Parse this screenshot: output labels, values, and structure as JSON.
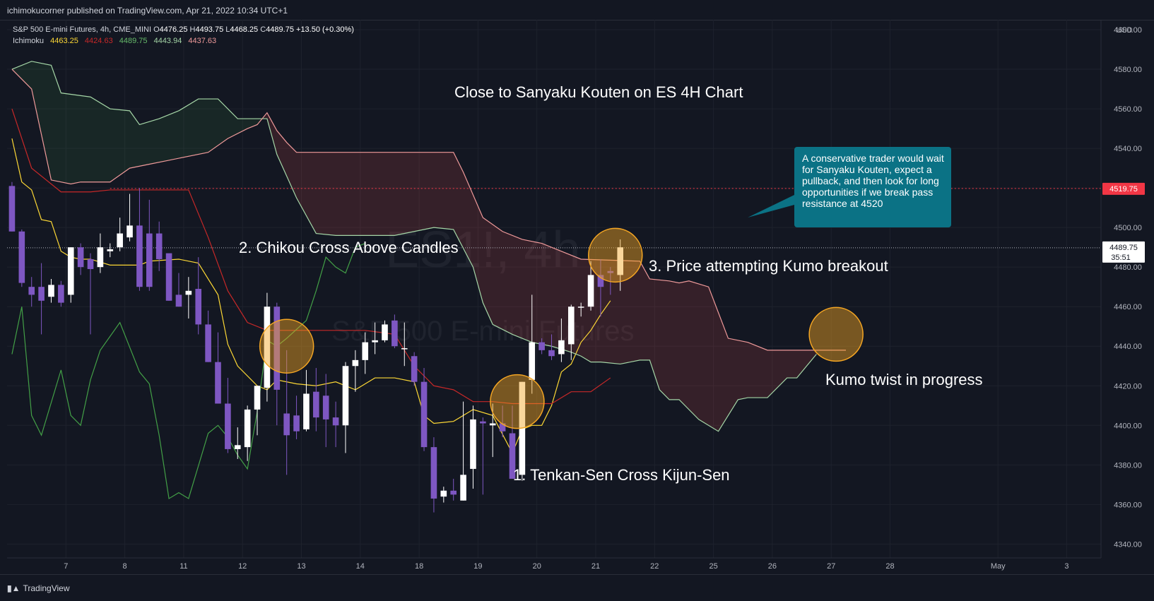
{
  "header": {
    "published": "ichimokucorner published on TradingView.com, Apr 21, 2022 10:34 UTC+1"
  },
  "legend": {
    "symbol": "S&P 500 E-mini Futures, 4h, CME_MINI",
    "o_label": "O",
    "o": "4476.25",
    "h_label": "H",
    "h": "4493.75",
    "l_label": "L",
    "l": "4468.25",
    "c_label": "C",
    "c": "4489.75",
    "change": "+13.50 (+0.30%)",
    "indicator": "Ichimoku",
    "ichimoku_values": [
      "4463.25",
      "4424.63",
      "4489.75",
      "4443.94",
      "4437.63"
    ],
    "ichimoku_colors": [
      "#fdd835",
      "#c62828",
      "#66bb6a",
      "#a5d6a7",
      "#ef9a9a"
    ]
  },
  "watermark": {
    "symbol": "ES1!, 4h",
    "name": "S&P 500 E-mini Futures"
  },
  "annotations": {
    "title": "Close to Sanyaku Kouten on ES 4H Chart",
    "chikou": "2. Chikou Cross Above Candles",
    "price": "3. Price attempting Kumo breakout",
    "tenkan": "1. Tenkan-Sen Cross Kijun-Sen",
    "kumo_twist": "Kumo twist in progress",
    "callout": "A conservative trader would wait for Sanyaku Kouten, expect a pullback, and then look for long opportunities if we break pass resistance at 4520"
  },
  "price_axis": {
    "currency": "USD",
    "resistance_label": "4519.75",
    "last_price_label": "4489.75",
    "countdown": "35:51"
  },
  "footer": {
    "brand": "TradingView"
  },
  "colors": {
    "background": "#131722",
    "up_candle": "#ffffff",
    "down_candle": "#7e57c2",
    "tenkan": "#fdd835",
    "kijun": "#c62828",
    "chikou": "#43a047",
    "span_a": "#a5d6a7",
    "span_b": "#ef9a9a",
    "resistance": "#f23645",
    "callout": "#0b7285",
    "highlight": "#f5a623"
  },
  "chart_data": {
    "type": "candlestick",
    "title": "Close to Sanyaku Kouten on ES 4H Chart",
    "ylim": [
      4333,
      4605
    ],
    "xlim": [
      -0.5,
      111
    ],
    "y_ticks": [
      4340,
      4360,
      4380,
      4400,
      4420,
      4440,
      4460,
      4480,
      4500,
      4520,
      4540,
      4560,
      4580,
      4600
    ],
    "y_tick_labels": [
      "4340.00",
      "4360.00",
      "4380.00",
      "4400.00",
      "4420.00",
      "4440.00",
      "4460.00",
      "4480.00",
      "4500.00",
      "4520.00",
      "4540.00",
      "4560.00",
      "4580.00",
      "4600.00"
    ],
    "x_ticks": [
      {
        "label": "7",
        "x": 5.5
      },
      {
        "label": "8",
        "x": 11.5
      },
      {
        "label": "11",
        "x": 17.5
      },
      {
        "label": "12",
        "x": 23.5
      },
      {
        "label": "13",
        "x": 29.5
      },
      {
        "label": "14",
        "x": 35.5
      },
      {
        "label": "18",
        "x": 41.5
      },
      {
        "label": "19",
        "x": 47.5
      },
      {
        "label": "20",
        "x": 53.5
      },
      {
        "label": "21",
        "x": 59.5
      },
      {
        "label": "22",
        "x": 65.5
      },
      {
        "label": "25",
        "x": 71.5
      },
      {
        "label": "26",
        "x": 77.5
      },
      {
        "label": "27",
        "x": 83.5
      },
      {
        "label": "28",
        "x": 89.5
      },
      {
        "label": "May",
        "x": 100.5
      },
      {
        "label": "3",
        "x": 107.5
      }
    ],
    "candles": [
      [
        4521,
        4523,
        4498,
        4498
      ],
      [
        4498,
        4499,
        4472,
        4470
      ],
      [
        4470,
        4475,
        4466,
        4460
      ],
      [
        4470,
        4482,
        4463,
        4446
      ],
      [
        4465,
        4474,
        4471,
        4462
      ],
      [
        4471,
        4473,
        4462,
        4460
      ],
      [
        4466,
        4490,
        4490,
        4462
      ],
      [
        4490,
        4492,
        4480,
        4476
      ],
      [
        4484,
        4487,
        4479,
        4446
      ],
      [
        4480,
        4497,
        4490,
        4477
      ],
      [
        4488,
        4492,
        4489,
        4485
      ],
      [
        4490,
        4505,
        4497,
        4488
      ],
      [
        4495,
        4517,
        4501,
        4493
      ],
      [
        4501,
        4520,
        4470,
        4468
      ],
      [
        4497,
        4514,
        4470,
        4468
      ],
      [
        4497,
        4503,
        4484,
        4478
      ],
      [
        4487,
        4485,
        4463,
        4463
      ],
      [
        4466,
        4477,
        4460,
        4460
      ],
      [
        4466,
        4475,
        4468,
        4454
      ],
      [
        4469,
        4485,
        4451,
        4446
      ],
      [
        4451,
        4458,
        4432,
        4432
      ],
      [
        4432,
        4447,
        4411,
        4411
      ],
      [
        4411,
        4424,
        4388,
        4386
      ],
      [
        4388,
        4399,
        4390,
        4383
      ],
      [
        4389,
        4410,
        4408,
        4382
      ],
      [
        4408,
        4420,
        4420,
        4395
      ],
      [
        4419,
        4467,
        4460,
        4412
      ],
      [
        4460,
        4462,
        4418,
        4400
      ],
      [
        4406,
        4438,
        4395,
        4375
      ],
      [
        4405,
        4415,
        4397,
        4393
      ],
      [
        4398,
        4428,
        4416,
        4397
      ],
      [
        4417,
        4429,
        4404,
        4397
      ],
      [
        4415,
        4426,
        4403,
        4389
      ],
      [
        4404,
        4412,
        4400,
        4389
      ],
      [
        4400,
        4432,
        4430,
        4386
      ],
      [
        4430,
        4438,
        4433,
        4417
      ],
      [
        4433,
        4447,
        4442,
        4426
      ],
      [
        4442,
        4452,
        4443,
        4436
      ],
      [
        4443,
        4453,
        4451,
        4442
      ],
      [
        4453,
        4456,
        4440,
        4439
      ],
      [
        4439,
        4452,
        4439,
        4430
      ],
      [
        4435,
        4437,
        4422,
        4420
      ],
      [
        4422,
        4429,
        4389,
        4387
      ],
      [
        4389,
        4394,
        4363,
        4356
      ],
      [
        4364,
        4369,
        4367,
        4361
      ],
      [
        4367,
        4373,
        4365,
        4362
      ],
      [
        4362,
        4412,
        4375,
        4362
      ],
      [
        4378,
        4410,
        4403,
        4368
      ],
      [
        4402,
        4404,
        4401,
        4365
      ],
      [
        4400,
        4411,
        4401,
        4384
      ],
      [
        4401,
        4410,
        4397,
        4394
      ],
      [
        4396,
        4410,
        4373,
        4373
      ],
      [
        4375,
        4422,
        4422,
        4372
      ],
      [
        4423,
        4466,
        4442,
        4416
      ],
      [
        4442,
        4444,
        4438,
        4436
      ],
      [
        4438,
        4446,
        4435,
        4433
      ],
      [
        4436,
        4454,
        4443,
        4432
      ],
      [
        4441,
        4461,
        4460,
        4433
      ],
      [
        4460,
        4462,
        4460,
        4455
      ],
      [
        4460,
        4483,
        4476,
        4458
      ],
      [
        4476,
        4484,
        4470,
        4455
      ],
      [
        4478,
        4480,
        4477,
        4466
      ],
      [
        4476,
        4494,
        4490,
        4468
      ]
    ],
    "series": [
      {
        "name": "Tenkan",
        "values": [
          [
            0,
            4545
          ],
          [
            1,
            4523
          ],
          [
            2,
            4519
          ],
          [
            3,
            4504
          ],
          [
            4,
            4503
          ],
          [
            5,
            4488
          ],
          [
            6,
            4485
          ],
          [
            7,
            4484
          ],
          [
            8,
            4484
          ],
          [
            10,
            4481
          ],
          [
            13,
            4481
          ],
          [
            14,
            4483
          ],
          [
            17,
            4484
          ],
          [
            19,
            4482
          ],
          [
            21,
            4466
          ],
          [
            22,
            4441
          ],
          [
            23,
            4430
          ],
          [
            25,
            4420
          ],
          [
            26,
            4418
          ],
          [
            27,
            4423
          ],
          [
            29,
            4421
          ],
          [
            31,
            4420
          ],
          [
            33,
            4422
          ],
          [
            35,
            4418
          ],
          [
            37,
            4424
          ],
          [
            39,
            4424
          ],
          [
            41,
            4422
          ],
          [
            42,
            4405
          ],
          [
            43,
            4401
          ],
          [
            45,
            4402
          ],
          [
            47,
            4408
          ],
          [
            49,
            4405
          ],
          [
            51,
            4386
          ],
          [
            52,
            4398
          ],
          [
            53,
            4400
          ],
          [
            54,
            4400
          ],
          [
            55,
            4410
          ],
          [
            56,
            4427
          ],
          [
            57,
            4431
          ],
          [
            58,
            4442
          ],
          [
            59,
            4448
          ],
          [
            60,
            4456
          ],
          [
            61,
            4463
          ]
        ]
      },
      {
        "name": "Kijun",
        "values": [
          [
            0,
            4560
          ],
          [
            2,
            4530
          ],
          [
            5,
            4518
          ],
          [
            8,
            4518
          ],
          [
            10,
            4519
          ],
          [
            16,
            4519
          ],
          [
            18,
            4519
          ],
          [
            20,
            4495
          ],
          [
            22,
            4468
          ],
          [
            24,
            4452
          ],
          [
            26,
            4448
          ],
          [
            30,
            4448
          ],
          [
            36,
            4448
          ],
          [
            39,
            4446
          ],
          [
            41,
            4430
          ],
          [
            43,
            4420
          ],
          [
            45,
            4418
          ],
          [
            47,
            4412
          ],
          [
            49,
            4412
          ],
          [
            51,
            4411
          ],
          [
            53,
            4411
          ],
          [
            55,
            4411
          ],
          [
            57,
            4417
          ],
          [
            59,
            4417
          ],
          [
            61,
            4424
          ]
        ]
      },
      {
        "name": "Chikou",
        "values": [
          [
            0,
            4436
          ],
          [
            1,
            4460
          ],
          [
            2,
            4405
          ],
          [
            3,
            4395
          ],
          [
            5,
            4428
          ],
          [
            6,
            4405
          ],
          [
            7,
            4400
          ],
          [
            8,
            4423
          ],
          [
            9,
            4438
          ],
          [
            11,
            4452
          ],
          [
            13,
            4427
          ],
          [
            14,
            4421
          ],
          [
            15,
            4395
          ],
          [
            16,
            4363
          ],
          [
            17,
            4366
          ],
          [
            18,
            4363
          ],
          [
            20,
            4396
          ],
          [
            21,
            4400
          ],
          [
            22,
            4394
          ],
          [
            23,
            4385
          ],
          [
            24,
            4378
          ],
          [
            25,
            4407
          ],
          [
            26,
            4443
          ],
          [
            27,
            4440
          ],
          [
            28,
            4444
          ],
          [
            30,
            4453
          ],
          [
            31,
            4468
          ],
          [
            32,
            4485
          ],
          [
            33,
            4480
          ],
          [
            34,
            4477
          ],
          [
            35,
            4490
          ],
          [
            36,
            4492
          ]
        ]
      },
      {
        "name": "Senkou A",
        "values": [
          [
            0,
            4580
          ],
          [
            2,
            4584
          ],
          [
            4,
            4582
          ],
          [
            5,
            4568
          ],
          [
            8,
            4566
          ],
          [
            10,
            4560
          ],
          [
            12,
            4559
          ],
          [
            13,
            4552
          ],
          [
            15,
            4555
          ],
          [
            17,
            4559
          ],
          [
            19,
            4565
          ],
          [
            21,
            4565
          ],
          [
            23,
            4555
          ],
          [
            25,
            4555
          ],
          [
            26,
            4555
          ],
          [
            27,
            4537
          ],
          [
            29,
            4515
          ],
          [
            31,
            4497
          ],
          [
            33,
            4496
          ],
          [
            35,
            4496
          ],
          [
            37,
            4496
          ],
          [
            39,
            4496
          ],
          [
            41,
            4498
          ],
          [
            43,
            4500
          ],
          [
            45,
            4499
          ],
          [
            47,
            4480
          ],
          [
            48,
            4462
          ],
          [
            49,
            4451
          ],
          [
            51,
            4446
          ],
          [
            53,
            4442
          ],
          [
            55,
            4440
          ],
          [
            57,
            4437
          ],
          [
            58,
            4435
          ],
          [
            59,
            4432
          ],
          [
            60,
            4432
          ],
          [
            62,
            4431
          ],
          [
            64,
            4433
          ],
          [
            65,
            4433
          ],
          [
            66,
            4418
          ],
          [
            67,
            4413
          ],
          [
            68,
            4413
          ],
          [
            70,
            4403
          ],
          [
            72,
            4397
          ],
          [
            74,
            4413
          ],
          [
            75,
            4414
          ],
          [
            76,
            4414
          ],
          [
            77,
            4414
          ],
          [
            79,
            4424
          ],
          [
            80,
            4424
          ],
          [
            82,
            4436
          ]
        ]
      },
      {
        "name": "Senkou B",
        "values": [
          [
            0,
            4580
          ],
          [
            2,
            4570
          ],
          [
            4,
            4524
          ],
          [
            6,
            4522
          ],
          [
            7,
            4523
          ],
          [
            10,
            4523
          ],
          [
            12,
            4530
          ],
          [
            14,
            4532
          ],
          [
            16,
            4534
          ],
          [
            20,
            4538
          ],
          [
            22,
            4545
          ],
          [
            24,
            4550
          ],
          [
            25,
            4552
          ],
          [
            26,
            4558
          ],
          [
            27,
            4549
          ],
          [
            28,
            4543
          ],
          [
            29,
            4538
          ],
          [
            30,
            4538
          ],
          [
            43,
            4538
          ],
          [
            45,
            4538
          ],
          [
            46,
            4528
          ],
          [
            48,
            4505
          ],
          [
            50,
            4498
          ],
          [
            52,
            4494
          ],
          [
            54,
            4492
          ],
          [
            56,
            4488
          ],
          [
            58,
            4484
          ],
          [
            64,
            4483
          ],
          [
            65,
            4474
          ],
          [
            67,
            4473
          ],
          [
            68,
            4472
          ],
          [
            69,
            4473
          ],
          [
            71,
            4470
          ],
          [
            72,
            4457
          ],
          [
            73,
            4444
          ],
          [
            75,
            4442
          ],
          [
            77,
            4438
          ],
          [
            81,
            4438
          ],
          [
            83,
            4438
          ],
          [
            84,
            4438
          ],
          [
            85,
            4438
          ]
        ]
      }
    ],
    "levels": [
      {
        "name": "resistance",
        "value": 4519.75
      },
      {
        "name": "last",
        "value": 4489.75
      }
    ],
    "highlights": [
      {
        "x": 28,
        "y": 4440
      },
      {
        "x": 51.5,
        "y": 4412
      },
      {
        "x": 61.5,
        "y": 4486
      },
      {
        "x": 84,
        "y": 4446
      }
    ]
  }
}
